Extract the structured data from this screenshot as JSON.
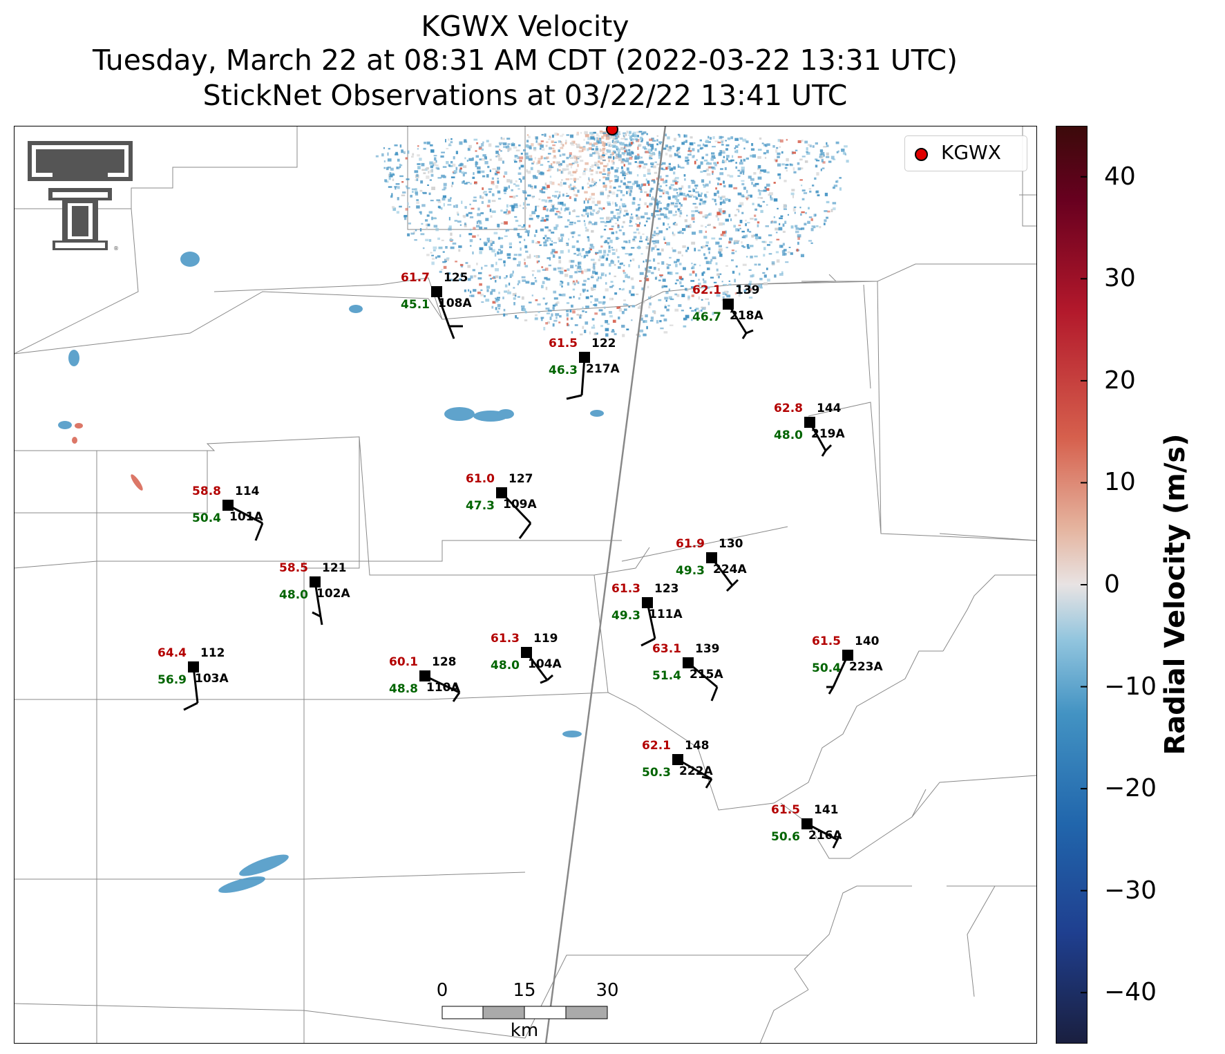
{
  "title": {
    "line1": "KGWX Velocity",
    "line2": "Tuesday, March 22 at 08:31 AM CDT (2022-03-22 13:31 UTC)",
    "line3": "StickNet Observations at 03/22/22 13:41 UTC"
  },
  "legend": {
    "label": "KGWX",
    "marker_color": "#e00000"
  },
  "colorbar": {
    "label": "Radial Velocity (m/s)",
    "range": [
      -45,
      45
    ],
    "ticks": [
      "40",
      "30",
      "20",
      "10",
      "0",
      "−10",
      "−20",
      "−30",
      "−40"
    ],
    "tick_values": [
      40,
      30,
      20,
      10,
      0,
      -10,
      -20,
      -30,
      -40
    ],
    "colors": [
      "#1a1f3f",
      "#1f3f8f",
      "#2166ac",
      "#4393c3",
      "#92c5de",
      "#d1d1d1",
      "#f2e6e6",
      "#e5b5a0",
      "#d6604d",
      "#b2182b",
      "#67001f",
      "#3b0a0a"
    ]
  },
  "scale_bar": {
    "labels": [
      "0",
      "15",
      "30"
    ],
    "unit": "km"
  },
  "radar": {
    "name": "KGWX"
  },
  "stations": [
    {
      "id": "108A",
      "temp": "61.7",
      "dew": "45.1",
      "pres": "125"
    },
    {
      "id": "217A",
      "temp": "61.5",
      "dew": "46.3",
      "pres": "122"
    },
    {
      "id": "218A",
      "temp": "62.1",
      "dew": "46.7",
      "pres": "139"
    },
    {
      "id": "219A",
      "temp": "62.8",
      "dew": "48.0",
      "pres": "144"
    },
    {
      "id": "101A",
      "temp": "58.8",
      "dew": "50.4",
      "pres": "114"
    },
    {
      "id": "109A",
      "temp": "61.0",
      "dew": "47.3",
      "pres": "127"
    },
    {
      "id": "224A",
      "temp": "61.9",
      "dew": "49.3",
      "pres": "130"
    },
    {
      "id": "102A",
      "temp": "58.5",
      "dew": "48.0",
      "pres": "121"
    },
    {
      "id": "111A",
      "temp": "61.3",
      "dew": "49.3",
      "pres": "123"
    },
    {
      "id": "103A",
      "temp": "64.4",
      "dew": "56.9",
      "pres": "112"
    },
    {
      "id": "110A",
      "temp": "60.1",
      "dew": "48.8",
      "pres": "128"
    },
    {
      "id": "104A",
      "temp": "61.3",
      "dew": "48.0",
      "pres": "119"
    },
    {
      "id": "215A",
      "temp": "63.1",
      "dew": "51.4",
      "pres": "139"
    },
    {
      "id": "223A",
      "temp": "61.5",
      "dew": "50.4",
      "pres": "140"
    },
    {
      "id": "222A",
      "temp": "62.1",
      "dew": "50.3",
      "pres": "148"
    },
    {
      "id": "216A",
      "temp": "61.5",
      "dew": "50.6",
      "pres": "141"
    }
  ]
}
